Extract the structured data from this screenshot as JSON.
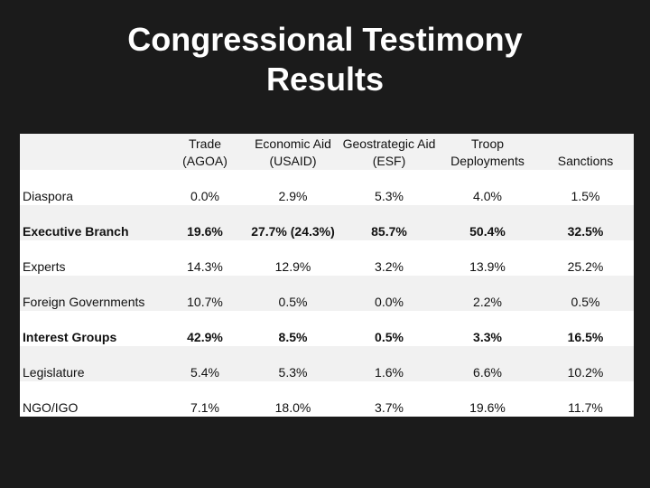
{
  "title_lines": [
    "Congressional Testimony",
    "Results"
  ],
  "table": {
    "headers": [
      "",
      "Trade (AGOA)",
      "Economic Aid (USAID)",
      "Geostrategic Aid (ESF)",
      "Troop Deployments",
      "Sanctions"
    ],
    "rows": [
      {
        "label": "Diaspora",
        "values": [
          "0.0%",
          "2.9%",
          "5.3%",
          "4.0%",
          "1.5%"
        ]
      },
      {
        "label": "Executive Branch",
        "values": [
          "19.6%",
          "27.7% (24.3%)",
          "85.7%",
          "50.4%",
          "32.5%"
        ]
      },
      {
        "label": "Experts",
        "values": [
          "14.3%",
          "12.9%",
          "3.2%",
          "13.9%",
          "25.2%"
        ]
      },
      {
        "label": "Foreign Governments",
        "values": [
          "10.7%",
          "0.5%",
          "0.0%",
          "2.2%",
          "0.5%"
        ]
      },
      {
        "label": "Interest Groups",
        "values": [
          "42.9%",
          "8.5%",
          "0.5%",
          "3.3%",
          "16.5%"
        ]
      },
      {
        "label": "Legislature",
        "values": [
          "5.4%",
          "5.3%",
          "1.6%",
          "6.6%",
          "10.2%"
        ]
      },
      {
        "label": "NGO/IGO",
        "values": [
          "7.1%",
          "18.0%",
          "3.7%",
          "19.6%",
          "11.7%"
        ]
      }
    ]
  }
}
